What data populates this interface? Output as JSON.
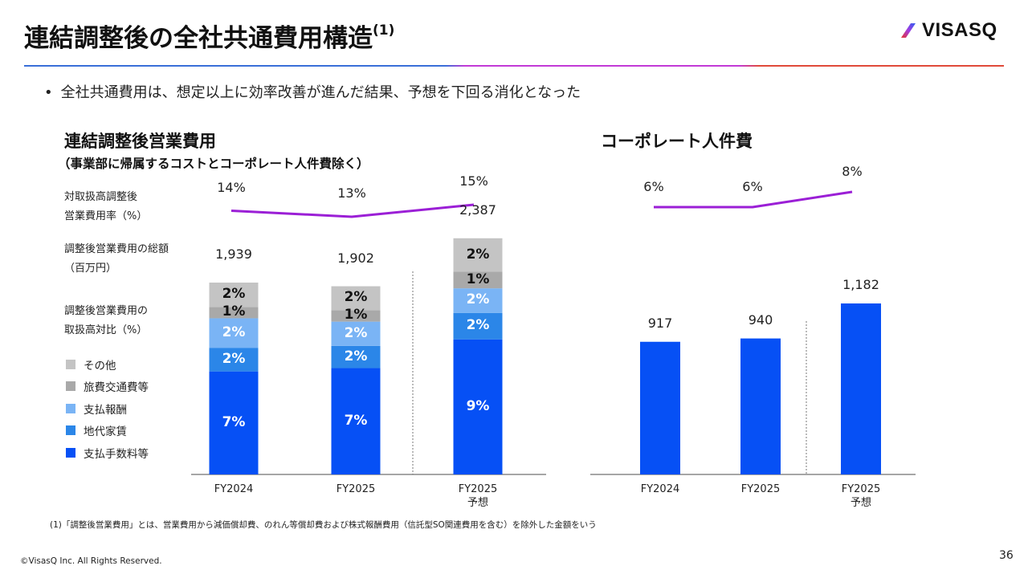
{
  "header": {
    "title": "連結調整後の全社共通費用構造",
    "title_note": "(1)",
    "logo_text": "VISASQ"
  },
  "bullet": "全社共通費用は、想定以上に効率改善が進んだ結果、予想を下回る消化となった",
  "left_panel": {
    "title": "連結調整後営業費用",
    "subtitle": "（事業部に帰属するコストとコーポレート人件費除く）",
    "row_labels": {
      "rate_line1": "対取扱高調整後",
      "rate_line2": "営業費用率（%）",
      "total_line1": "調整後営業費用の総額",
      "total_line2": "（百万円）",
      "ratio_line1": "調整後営業費用の",
      "ratio_line2": "取扱高対比（%）"
    },
    "legend": [
      {
        "label": "その他",
        "color": "#c4c4c4"
      },
      {
        "label": "旅費交通費等",
        "color": "#a9a9a9"
      },
      {
        "label": "支払報酬",
        "color": "#7ab4f5"
      },
      {
        "label": "地代家賃",
        "color": "#2b86e8"
      },
      {
        "label": "支払手数料等",
        "color": "#0650f5"
      }
    ]
  },
  "right_panel": {
    "title": "コーポレート人件費"
  },
  "colors": {
    "line": "#9b1fd6",
    "bar_blue": "#0650f5",
    "axis": "#888888"
  },
  "chart_data": [
    {
      "type": "bar",
      "stacked": true,
      "title": "連結調整後営業費用",
      "categories": [
        "FY2024",
        "FY2025",
        "FY2025 予想"
      ],
      "category_lines": [
        [
          "FY2024"
        ],
        [
          "FY2025"
        ],
        [
          "FY2025",
          "予想"
        ]
      ],
      "totals_label": "調整後営業費用の総額（百万円）",
      "totals": [
        1939,
        1902,
        2387
      ],
      "totals_text": [
        "1,939",
        "1,902",
        "2,387"
      ],
      "rate_line": {
        "name": "対取扱高調整後営業費用率（%）",
        "values": [
          14,
          13,
          15
        ],
        "labels": [
          "14%",
          "13%",
          "15%"
        ]
      },
      "series": [
        {
          "name": "支払手数料等",
          "values": [
            7,
            7,
            9
          ],
          "labels": [
            "7%",
            "7%",
            "9%"
          ],
          "label_color": "#ffffff"
        },
        {
          "name": "地代家賃",
          "values": [
            2,
            2,
            2
          ],
          "labels": [
            "2%",
            "2%",
            "2%"
          ],
          "label_color": "#ffffff"
        },
        {
          "name": "支払報酬",
          "values": [
            2,
            2,
            2
          ],
          "labels": [
            "2%",
            "2%",
            "2%"
          ],
          "label_color": "#ffffff"
        },
        {
          "name": "旅費交通費等",
          "values": [
            1,
            1,
            1
          ],
          "labels": [
            "1%",
            "1%",
            "1%"
          ],
          "label_color": "#111111"
        },
        {
          "name": "その他",
          "values": [
            2,
            2,
            2
          ],
          "labels": [
            "2%",
            "2%",
            "2%"
          ],
          "label_color": "#111111"
        }
      ],
      "segment_share_of_total": [
        [
          0.537,
          0.122,
          0.155,
          0.059,
          0.127
        ],
        [
          0.565,
          0.118,
          0.129,
          0.061,
          0.127
        ],
        [
          0.572,
          0.112,
          0.104,
          0.071,
          0.141
        ]
      ],
      "forecast_separator_before": 2,
      "ylabel": "百万円",
      "grid": false
    },
    {
      "type": "bar",
      "title": "コーポレート人件費",
      "categories": [
        "FY2024",
        "FY2025",
        "FY2025 予想"
      ],
      "category_lines": [
        [
          "FY2024"
        ],
        [
          "FY2025"
        ],
        [
          "FY2025",
          "予想"
        ]
      ],
      "values": [
        917,
        940,
        1182
      ],
      "value_labels": [
        "917",
        "940",
        "1,182"
      ],
      "rate_line": {
        "values": [
          6,
          6,
          8
        ],
        "labels": [
          "6%",
          "6%",
          "8%"
        ]
      },
      "forecast_separator_before": 2,
      "grid": false
    }
  ],
  "footer": {
    "footnote": "(1)「調整後営業費用」とは、営業費用から減価償却費、のれん等償却費および株式報酬費用（信託型SO関連費用を含む）を除外した金額をいう",
    "copyright": "©VisasQ Inc. All Rights Reserved.",
    "page_number": "36"
  }
}
